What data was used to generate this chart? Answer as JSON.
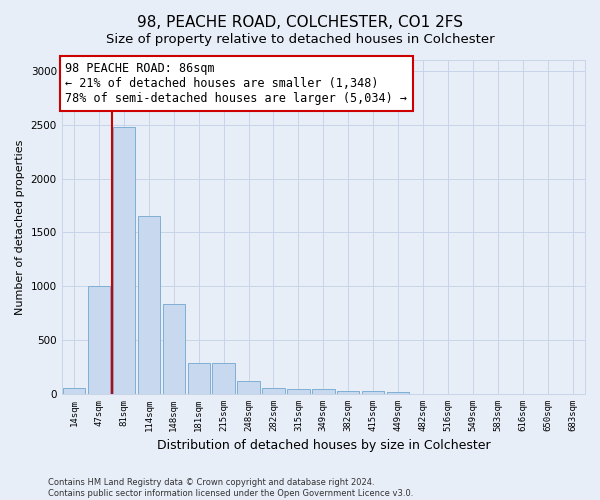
{
  "title": "98, PEACHE ROAD, COLCHESTER, CO1 2FS",
  "subtitle": "Size of property relative to detached houses in Colchester",
  "xlabel": "Distribution of detached houses by size in Colchester",
  "ylabel": "Number of detached properties",
  "categories": [
    "14sqm",
    "47sqm",
    "81sqm",
    "114sqm",
    "148sqm",
    "181sqm",
    "215sqm",
    "248sqm",
    "282sqm",
    "315sqm",
    "349sqm",
    "382sqm",
    "415sqm",
    "449sqm",
    "482sqm",
    "516sqm",
    "549sqm",
    "583sqm",
    "616sqm",
    "650sqm",
    "683sqm"
  ],
  "values": [
    60,
    1000,
    2480,
    1650,
    840,
    285,
    285,
    120,
    60,
    50,
    50,
    30,
    30,
    20,
    0,
    0,
    0,
    0,
    0,
    0,
    0
  ],
  "bar_color": "#c8d8ee",
  "bar_edge_color": "#7fafd4",
  "property_line_color": "#cc0000",
  "property_line_bin": 2,
  "annotation_text": "98 PEACHE ROAD: 86sqm\n← 21% of detached houses are smaller (1,348)\n78% of semi-detached houses are larger (5,034) →",
  "annotation_box_edgecolor": "#cc0000",
  "ylim": [
    0,
    3100
  ],
  "yticks": [
    0,
    500,
    1000,
    1500,
    2000,
    2500,
    3000
  ],
  "background_color": "#e8eef8",
  "grid_color": "#c8d4e8",
  "footer_line1": "Contains HM Land Registry data © Crown copyright and database right 2024.",
  "footer_line2": "Contains public sector information licensed under the Open Government Licence v3.0.",
  "title_fontsize": 11,
  "xlabel_fontsize": 9,
  "ylabel_fontsize": 8,
  "annotation_fontsize": 8.5
}
